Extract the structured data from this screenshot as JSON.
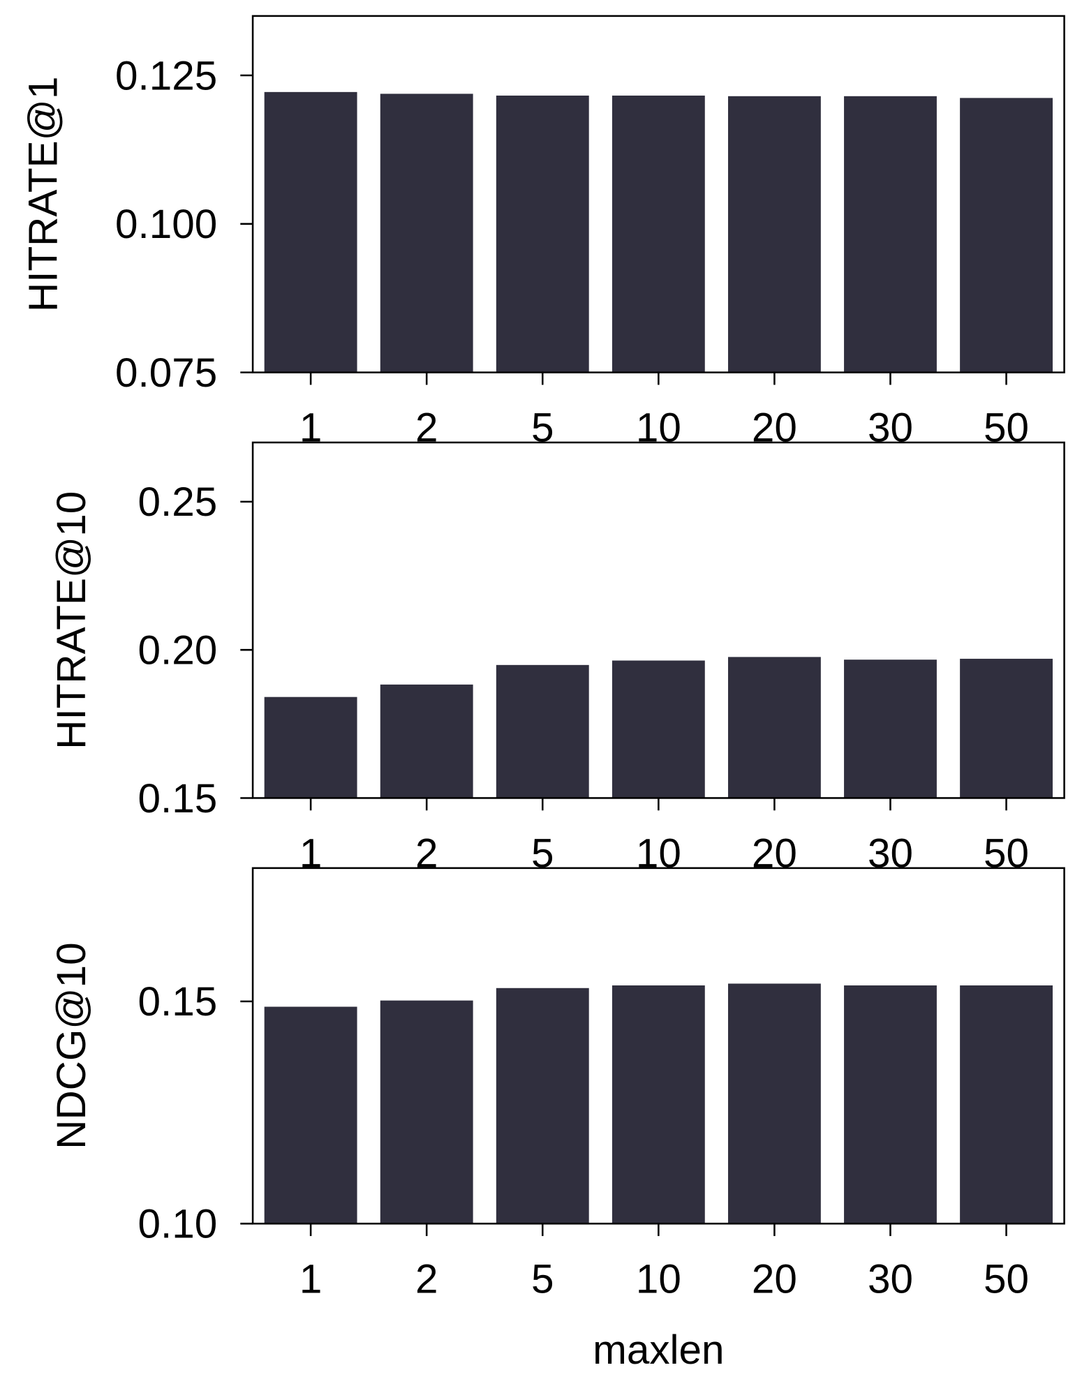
{
  "chart_data": [
    {
      "type": "bar",
      "ylabel": "HITRATE@1",
      "categories": [
        "1",
        "2",
        "5",
        "10",
        "20",
        "30",
        "50"
      ],
      "values": [
        0.1222,
        0.1219,
        0.1216,
        0.1216,
        0.1215,
        0.1215,
        0.1212
      ],
      "color": "#302f3e",
      "ylim": [
        0.075,
        0.135
      ],
      "yticks": [
        0.075,
        {
          "value": 0.1,
          "label": "0.100"
        },
        0.125
      ]
    },
    {
      "type": "bar",
      "ylabel": "HITRATE@10",
      "categories": [
        "1",
        "2",
        "5",
        "10",
        "20",
        "30",
        "50"
      ],
      "values": [
        0.1841,
        0.1883,
        0.1949,
        0.1964,
        0.1976,
        0.1967,
        0.197
      ],
      "color": "#302f3e",
      "ylim": [
        0.15,
        0.27
      ],
      "yticks": [
        0.15,
        {
          "value": 0.2,
          "label": "0.20"
        },
        0.25
      ]
    },
    {
      "type": "bar",
      "ylabel": "NDCG@10",
      "xlabel": "maxlen",
      "categories": [
        "1",
        "2",
        "5",
        "10",
        "20",
        "30",
        "50"
      ],
      "values": [
        0.1488,
        0.1502,
        0.153,
        0.1536,
        0.154,
        0.1536,
        0.1536
      ],
      "color": "#302f3e",
      "ylim": [
        0.1,
        0.18
      ],
      "yticks": [
        {
          "value": 0.1,
          "label": "0.10"
        },
        0.15
      ]
    }
  ]
}
